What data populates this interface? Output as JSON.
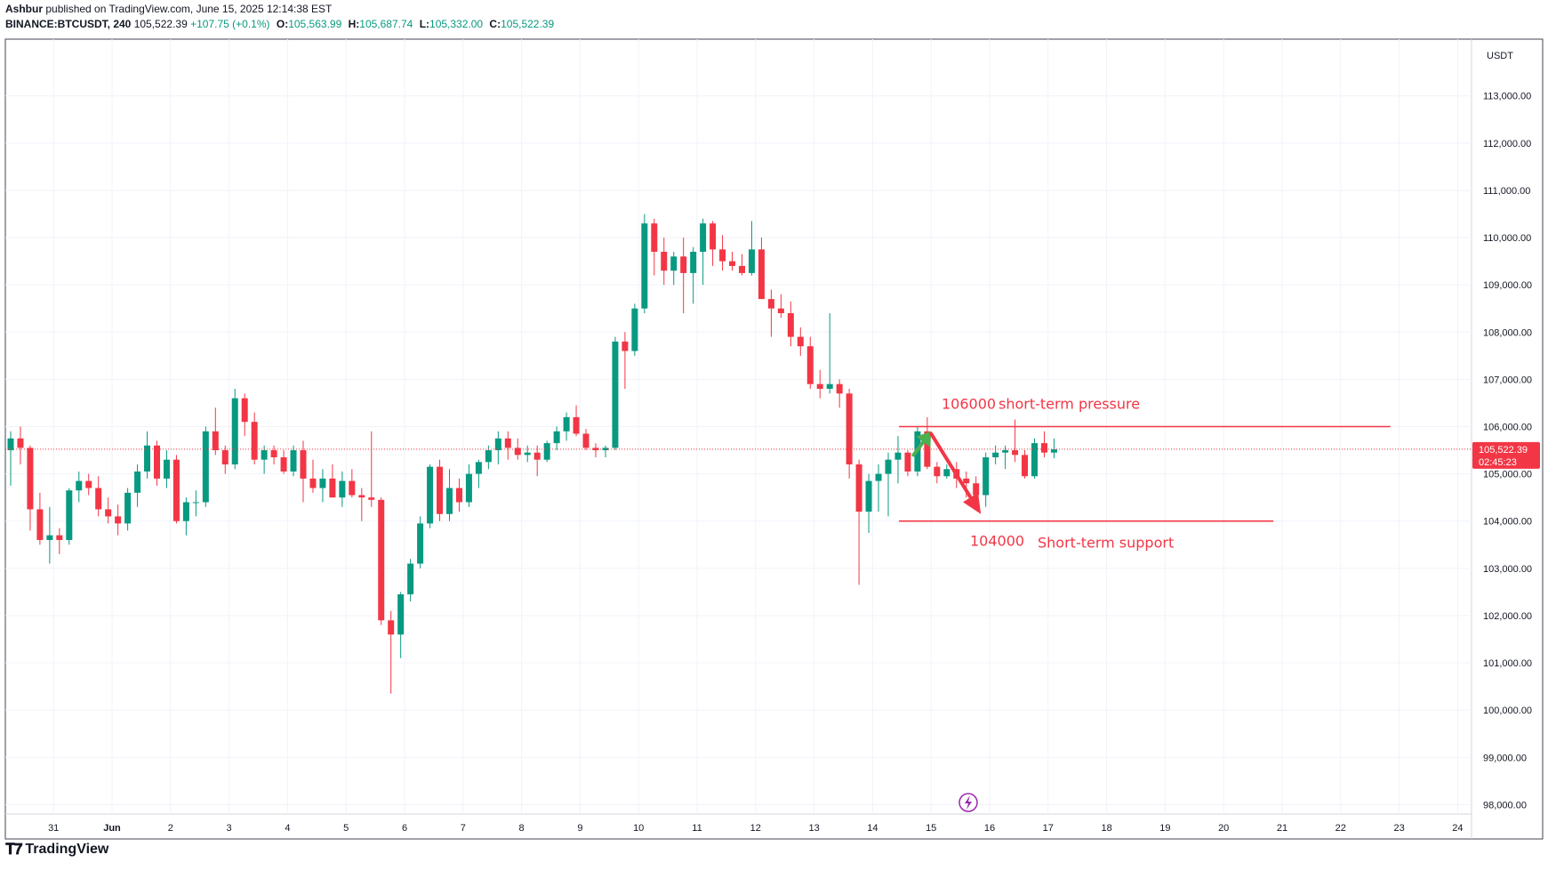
{
  "header": {
    "author": "Ashbur",
    "published": "published on TradingView.com, June 15, 2025 12:14:38 EST",
    "symbol": "BINANCE:BTCUSDT, 240",
    "last": "105,522.39",
    "change": "+107.75 (+0.1%)",
    "o_label": "O:",
    "o": "105,563.99",
    "h_label": "H:",
    "h": "105,687.74",
    "l_label": "L:",
    "l": "105,332.00",
    "c_label": "C:",
    "c": "105,522.39"
  },
  "footer": {
    "brand": "TradingView",
    "logo_icon": "tradingview-logo-icon"
  },
  "colors": {
    "up": "#089981",
    "down": "#f23645",
    "annotation": "#f23645",
    "arrow_up": "#4caf50"
  },
  "chart_data": {
    "type": "candlestick",
    "currency": "USDT",
    "ylim": [
      97800,
      114200
    ],
    "y_ticks": [
      {
        "v": 113000,
        "label": "113,000.00"
      },
      {
        "v": 112000,
        "label": "112,000.00"
      },
      {
        "v": 111000,
        "label": "111,000.00"
      },
      {
        "v": 110000,
        "label": "110,000.00"
      },
      {
        "v": 109000,
        "label": "109,000.00"
      },
      {
        "v": 108000,
        "label": "108,000.00"
      },
      {
        "v": 107000,
        "label": "107,000.00"
      },
      {
        "v": 106000,
        "label": "106,000.00"
      },
      {
        "v": 105000,
        "label": "105,000.00"
      },
      {
        "v": 104000,
        "label": "104,000.00"
      },
      {
        "v": 103000,
        "label": "103,000.00"
      },
      {
        "v": 102000,
        "label": "102,000.00"
      },
      {
        "v": 101000,
        "label": "101,000.00"
      },
      {
        "v": 100000,
        "label": "100,000.00"
      },
      {
        "v": 99000,
        "label": "99,000.00"
      },
      {
        "v": 98000,
        "label": "98,000.00"
      }
    ],
    "x_ticks": [
      {
        "day": -1,
        "label": "31"
      },
      {
        "day": 0,
        "label": "Jun"
      },
      {
        "day": 1,
        "label": "2"
      },
      {
        "day": 2,
        "label": "3"
      },
      {
        "day": 3,
        "label": "4"
      },
      {
        "day": 4,
        "label": "5"
      },
      {
        "day": 5,
        "label": "6"
      },
      {
        "day": 6,
        "label": "7"
      },
      {
        "day": 7,
        "label": "8"
      },
      {
        "day": 8,
        "label": "9"
      },
      {
        "day": 9,
        "label": "10"
      },
      {
        "day": 10,
        "label": "11"
      },
      {
        "day": 11,
        "label": "12"
      },
      {
        "day": 12,
        "label": "13"
      },
      {
        "day": 13,
        "label": "14"
      },
      {
        "day": 14,
        "label": "15"
      },
      {
        "day": 15,
        "label": "16"
      },
      {
        "day": 16,
        "label": "17"
      },
      {
        "day": 17,
        "label": "18"
      },
      {
        "day": 18,
        "label": "19"
      },
      {
        "day": 19,
        "label": "20"
      },
      {
        "day": 20,
        "label": "21"
      },
      {
        "day": 21,
        "label": "22"
      },
      {
        "day": 22,
        "label": "23"
      },
      {
        "day": 23,
        "label": "24"
      }
    ],
    "candles": [
      [
        105500,
        105900,
        104750,
        105750
      ],
      [
        105750,
        106000,
        105200,
        105550
      ],
      [
        105550,
        105600,
        103800,
        104250
      ],
      [
        104250,
        104600,
        103500,
        103600
      ],
      [
        103600,
        104300,
        103100,
        103700
      ],
      [
        103700,
        103850,
        103300,
        103600
      ],
      [
        103600,
        104700,
        103500,
        104650
      ],
      [
        104650,
        105050,
        104400,
        104850
      ],
      [
        104850,
        105000,
        104550,
        104700
      ],
      [
        104700,
        104950,
        104100,
        104250
      ],
      [
        104250,
        104500,
        103950,
        104100
      ],
      [
        104100,
        104350,
        103700,
        103950
      ],
      [
        103950,
        104700,
        103800,
        104600
      ],
      [
        104600,
        105200,
        104300,
        105050
      ],
      [
        105050,
        105900,
        104900,
        105600
      ],
      [
        105600,
        105700,
        104750,
        104900
      ],
      [
        104900,
        105500,
        104700,
        105300
      ],
      [
        105300,
        105400,
        103950,
        104000
      ],
      [
        104000,
        104500,
        103700,
        104400
      ],
      [
        104400,
        104650,
        104100,
        104400
      ],
      [
        104400,
        106000,
        104300,
        105900
      ],
      [
        105900,
        106400,
        105400,
        105500
      ],
      [
        105500,
        105600,
        105000,
        105200
      ],
      [
        105200,
        106800,
        105100,
        106600
      ],
      [
        106600,
        106700,
        105800,
        106100
      ],
      [
        106100,
        106300,
        105200,
        105300
      ],
      [
        105300,
        105600,
        105000,
        105500
      ],
      [
        105500,
        105600,
        105200,
        105350
      ],
      [
        105350,
        105500,
        105000,
        105050
      ],
      [
        105050,
        105600,
        104950,
        105500
      ],
      [
        105500,
        105700,
        104400,
        104900
      ],
      [
        104900,
        105300,
        104600,
        104700
      ],
      [
        104700,
        105100,
        104400,
        104900
      ],
      [
        104900,
        105200,
        104500,
        104500
      ],
      [
        104500,
        105050,
        104300,
        104850
      ],
      [
        104850,
        105100,
        104500,
        104550
      ],
      [
        104550,
        104700,
        104000,
        104500
      ],
      [
        104500,
        105900,
        104300,
        104450
      ],
      [
        104450,
        104500,
        101800,
        101900
      ],
      [
        101900,
        102100,
        100350,
        101600
      ],
      [
        101600,
        102500,
        101100,
        102450
      ],
      [
        102450,
        103200,
        102300,
        103100
      ],
      [
        103100,
        104100,
        103000,
        103950
      ],
      [
        103950,
        105200,
        103850,
        105150
      ],
      [
        105150,
        105300,
        104000,
        104150
      ],
      [
        104150,
        105100,
        104000,
        104700
      ],
      [
        104700,
        104900,
        104200,
        104400
      ],
      [
        104400,
        105200,
        104300,
        105000
      ],
      [
        105000,
        105300,
        104700,
        105250
      ],
      [
        105250,
        105600,
        105100,
        105500
      ],
      [
        105500,
        105900,
        105200,
        105750
      ],
      [
        105750,
        105900,
        105300,
        105550
      ],
      [
        105550,
        105750,
        105300,
        105400
      ],
      [
        105400,
        105600,
        105250,
        105450
      ],
      [
        105450,
        105600,
        104950,
        105300
      ],
      [
        105300,
        105700,
        105250,
        105650
      ],
      [
        105650,
        106000,
        105500,
        105900
      ],
      [
        105900,
        106300,
        105700,
        106200
      ],
      [
        106200,
        106450,
        105800,
        105850
      ],
      [
        105850,
        105950,
        105500,
        105550
      ],
      [
        105550,
        105650,
        105350,
        105500
      ],
      [
        105500,
        105600,
        105350,
        105550
      ],
      [
        105550,
        107900,
        105500,
        107800
      ],
      [
        107800,
        108000,
        106800,
        107600
      ],
      [
        107600,
        108600,
        107500,
        108500
      ],
      [
        108500,
        110500,
        108400,
        110300
      ],
      [
        110300,
        110400,
        109200,
        109700
      ],
      [
        109700,
        110000,
        109000,
        109300
      ],
      [
        109300,
        109700,
        109000,
        109600
      ],
      [
        109600,
        110000,
        108400,
        109250
      ],
      [
        109250,
        109800,
        108600,
        109700
      ],
      [
        109700,
        110400,
        109000,
        110300
      ],
      [
        110300,
        110350,
        109400,
        109750
      ],
      [
        109750,
        110050,
        109300,
        109500
      ],
      [
        109500,
        109700,
        109300,
        109400
      ],
      [
        109400,
        109650,
        109200,
        109250
      ],
      [
        109250,
        110350,
        109200,
        109750
      ],
      [
        109750,
        110000,
        108700,
        108700
      ],
      [
        108700,
        108900,
        107900,
        108500
      ],
      [
        108500,
        108800,
        108300,
        108400
      ],
      [
        108400,
        108650,
        107700,
        107900
      ],
      [
        107900,
        108100,
        107500,
        107700
      ],
      [
        107700,
        107900,
        106800,
        106900
      ],
      [
        106900,
        107200,
        106600,
        106800
      ],
      [
        106800,
        108400,
        106700,
        106900
      ],
      [
        106900,
        107000,
        106400,
        106700
      ],
      [
        106700,
        106800,
        104900,
        105200
      ],
      [
        105200,
        105300,
        102650,
        104200
      ],
      [
        104200,
        105000,
        103750,
        104850
      ],
      [
        104850,
        105200,
        104200,
        105000
      ],
      [
        105000,
        105450,
        104100,
        105300
      ],
      [
        105300,
        105800,
        104800,
        105450
      ],
      [
        105450,
        105500,
        104950,
        105050
      ],
      [
        105050,
        106000,
        104950,
        105900
      ],
      [
        105900,
        106200,
        105100,
        105150
      ],
      [
        105150,
        105250,
        104800,
        104950
      ],
      [
        104950,
        105200,
        104900,
        105100
      ],
      [
        105100,
        105250,
        104700,
        104900
      ],
      [
        104900,
        105050,
        104500,
        104800
      ],
      [
        104800,
        104950,
        104300,
        104550
      ],
      [
        104550,
        105450,
        104300,
        105350
      ],
      [
        105350,
        105600,
        105200,
        105450
      ],
      [
        105450,
        105600,
        105100,
        105500
      ],
      [
        105500,
        106150,
        105250,
        105400
      ],
      [
        105400,
        105500,
        104900,
        104950
      ],
      [
        104950,
        105750,
        104900,
        105650
      ],
      [
        105650,
        105900,
        105350,
        105450
      ],
      [
        105450,
        105750,
        105330,
        105520
      ]
    ],
    "last_price": 105522.39,
    "last_price_label": "105,522.39",
    "countdown": "02:45:23",
    "annotations": {
      "resistance": {
        "price": 106000,
        "price_label": "106000",
        "text": "short-term pressure",
        "from_day": 13.45,
        "to_day": 21.85
      },
      "support": {
        "price": 104000,
        "price_label": "104000",
        "text": "Short-term support",
        "from_day": 13.45,
        "to_day": 19.85
      },
      "arrow_up": {
        "from": [
          13.7,
          105400
        ],
        "to": [
          14.0,
          105900
        ]
      },
      "arrow_down": {
        "from": [
          14.0,
          105850
        ],
        "to": [
          14.85,
          104150
        ]
      }
    }
  }
}
